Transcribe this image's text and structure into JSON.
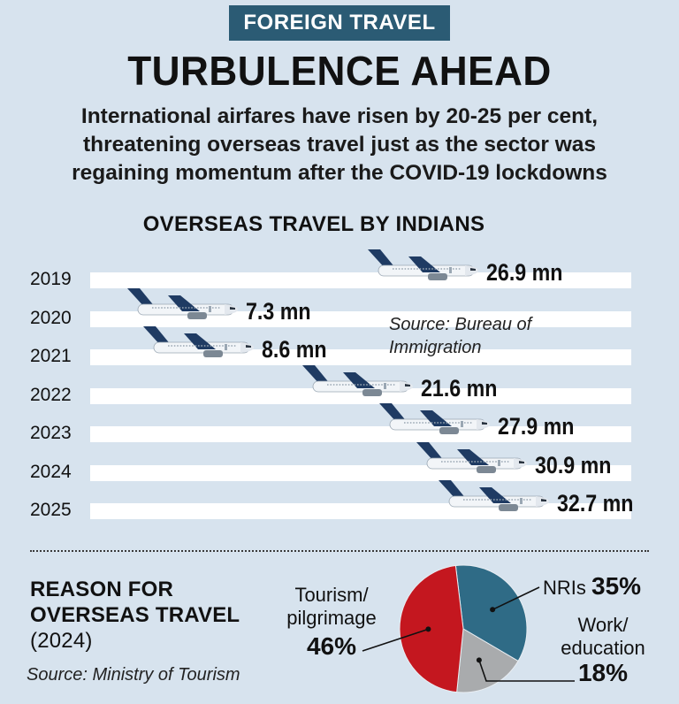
{
  "header": {
    "kicker": "FOREIGN TRAVEL",
    "headline": "TURBULENCE AHEAD",
    "subhead_lines": [
      "International airfares have risen by 20-25 per cent,",
      "threatening overseas travel just as the sector was",
      "regaining momentum after the COVID-19 lockdowns"
    ]
  },
  "colors": {
    "background": "#d7e3ee",
    "kicker_bg": "#2b5b74",
    "plane_tail": "#1f3b63",
    "plane_body": "#f2f5f8",
    "pie_nri": "#2f6b86",
    "pie_work": "#a9abad",
    "pie_tourism": "#c4171f"
  },
  "chart_data": [
    {
      "type": "bar",
      "title": "OVERSEAS TRAVEL BY INDIANS",
      "source": "Source: Bureau of Immigration",
      "unit": "mn",
      "categories": [
        "2019",
        "2020",
        "2021",
        "2022",
        "2023",
        "2024",
        "2025"
      ],
      "values": [
        26.9,
        7.3,
        8.6,
        21.6,
        27.9,
        30.9,
        32.7
      ],
      "value_labels": [
        "26.9 mn",
        "7.3 mn",
        "8.6 mn",
        "21.6 mn",
        "27.9 mn",
        "30.9 mn",
        "32.7 mn"
      ],
      "marker_icon": "airplane-icon"
    },
    {
      "type": "pie",
      "title": "REASON FOR OVERSEAS TRAVEL",
      "title_year": "(2024)",
      "source": "Source: Ministry of Tourism",
      "slices": [
        {
          "label": "NRIs",
          "value": 35,
          "pct_label": "35%",
          "color": "#2f6b86"
        },
        {
          "label": "Work/ education",
          "value": 18,
          "pct_label": "18%",
          "color": "#a9abad"
        },
        {
          "label": "Tourism/ pilgrimage",
          "value": 46,
          "pct_label": "46%",
          "color": "#c4171f"
        }
      ]
    }
  ]
}
